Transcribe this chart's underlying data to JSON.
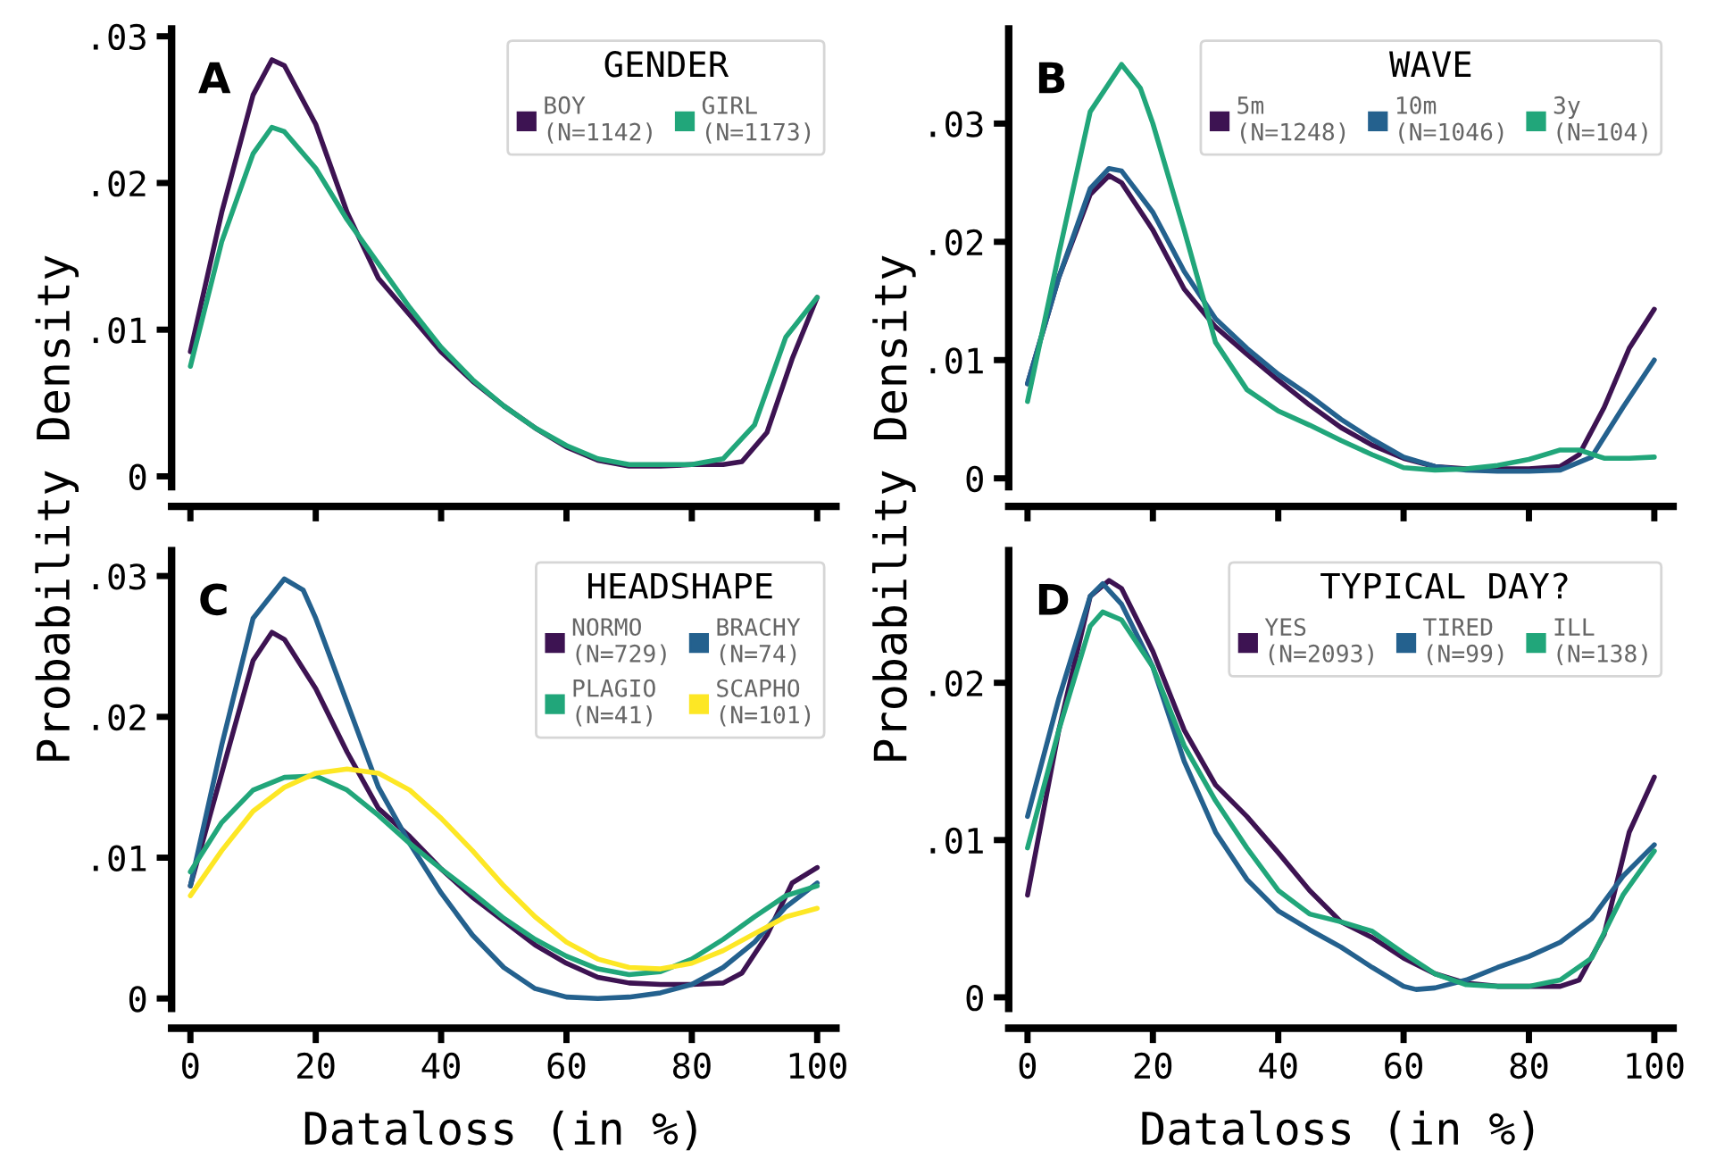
{
  "chart_data": [
    {
      "type": "line",
      "title": "A",
      "ylabel": "Probability Density",
      "legend_title": "GENDER",
      "legend": "top right",
      "grid": false,
      "tick_labels": "y",
      "line_style": "solid",
      "xlim": [
        -3,
        103
      ],
      "xticks": [
        0,
        20,
        40,
        60,
        80,
        100
      ],
      "ylim": [
        -0.0007,
        0.0305
      ],
      "yticks": [
        0,
        {
          "value": 0.01,
          "label": ".01"
        },
        {
          "value": 0.02,
          "label": ".02"
        },
        {
          "value": 0.03,
          "label": ".03"
        }
      ],
      "series": [
        {
          "name": "BOY\n(N=1142)",
          "color": "#3d1352",
          "x": [
            0,
            5,
            10,
            13,
            15,
            20,
            25,
            30,
            35,
            40,
            45,
            50,
            55,
            60,
            65,
            70,
            75,
            80,
            85,
            88,
            92,
            96,
            100
          ],
          "values": [
            0.0085,
            0.018,
            0.026,
            0.0284,
            0.028,
            0.024,
            0.018,
            0.0135,
            0.011,
            0.0085,
            0.0065,
            0.0048,
            0.0033,
            0.002,
            0.0011,
            0.0007,
            0.0007,
            0.0008,
            0.0008,
            0.001,
            0.003,
            0.008,
            0.0122
          ]
        },
        {
          "name": "GIRL\n(N=1173)",
          "color": "#21a67a",
          "x": [
            0,
            5,
            10,
            13,
            15,
            20,
            25,
            30,
            35,
            40,
            45,
            50,
            55,
            60,
            65,
            70,
            75,
            80,
            85,
            90,
            95,
            100
          ],
          "values": [
            0.0075,
            0.016,
            0.022,
            0.0238,
            0.0235,
            0.021,
            0.0175,
            0.0145,
            0.0115,
            0.0088,
            0.0066,
            0.0048,
            0.0033,
            0.0021,
            0.0012,
            0.0008,
            0.0008,
            0.0008,
            0.0012,
            0.0035,
            0.0095,
            0.0122
          ]
        }
      ]
    },
    {
      "type": "line",
      "title": "B",
      "ylabel": "Probability Density",
      "legend_title": "WAVE",
      "legend": "top right",
      "grid": false,
      "tick_labels": "y",
      "line_style": "solid",
      "xlim": [
        -3,
        103
      ],
      "xticks": [
        0,
        20,
        40,
        60,
        80,
        100
      ],
      "ylim": [
        -0.0007,
        0.038
      ],
      "yticks": [
        0,
        {
          "value": 0.01,
          "label": ".01"
        },
        {
          "value": 0.02,
          "label": ".02"
        },
        {
          "value": 0.03,
          "label": ".03"
        }
      ],
      "series": [
        {
          "name": "5m\n(N=1248)",
          "color": "#3d1352",
          "x": [
            0,
            5,
            10,
            13,
            15,
            20,
            25,
            30,
            35,
            40,
            45,
            50,
            55,
            60,
            65,
            70,
            75,
            80,
            85,
            88,
            92,
            96,
            100
          ],
          "values": [
            0.008,
            0.017,
            0.024,
            0.0256,
            0.025,
            0.021,
            0.016,
            0.0128,
            0.0105,
            0.0083,
            0.0062,
            0.0043,
            0.0028,
            0.0017,
            0.001,
            0.0008,
            0.0008,
            0.0008,
            0.001,
            0.002,
            0.006,
            0.011,
            0.0143
          ]
        },
        {
          "name": "10m\n(N=1046)",
          "color": "#24618e",
          "x": [
            0,
            5,
            10,
            13,
            15,
            20,
            25,
            30,
            35,
            40,
            45,
            50,
            55,
            60,
            65,
            70,
            75,
            80,
            85,
            90,
            95,
            100
          ],
          "values": [
            0.008,
            0.017,
            0.0245,
            0.0262,
            0.026,
            0.0225,
            0.0175,
            0.0135,
            0.011,
            0.0088,
            0.007,
            0.005,
            0.0033,
            0.0018,
            0.001,
            0.0007,
            0.0006,
            0.0006,
            0.0007,
            0.0018,
            0.006,
            0.01
          ]
        },
        {
          "name": "3y\n(N=104)",
          "color": "#21a67a",
          "x": [
            0,
            5,
            10,
            15,
            18,
            20,
            25,
            30,
            35,
            40,
            45,
            50,
            55,
            60,
            65,
            70,
            75,
            80,
            85,
            88,
            92,
            96,
            100
          ],
          "values": [
            0.0065,
            0.019,
            0.031,
            0.035,
            0.033,
            0.03,
            0.021,
            0.0115,
            0.0075,
            0.0057,
            0.0045,
            0.0032,
            0.002,
            0.0009,
            0.0007,
            0.0008,
            0.0011,
            0.0016,
            0.0024,
            0.0024,
            0.0017,
            0.0017,
            0.0018
          ]
        }
      ]
    },
    {
      "type": "line",
      "title": "C",
      "xlabel": "Dataloss (in %)",
      "legend_title": "HEADSHAPE",
      "legend": "top right",
      "grid": false,
      "line_style": "solid",
      "xlim": [
        -3,
        103
      ],
      "xticks": [
        0,
        20,
        40,
        60,
        80,
        100
      ],
      "ylim": [
        -0.0007,
        0.0318
      ],
      "yticks": [
        0,
        {
          "value": 0.01,
          "label": ".01"
        },
        {
          "value": 0.02,
          "label": ".02"
        },
        {
          "value": 0.03,
          "label": ".03"
        }
      ],
      "series": [
        {
          "name": "NORMO\n(N=729)",
          "color": "#3d1352",
          "x": [
            0,
            5,
            10,
            13,
            15,
            20,
            25,
            30,
            35,
            40,
            45,
            50,
            55,
            60,
            65,
            70,
            75,
            80,
            85,
            88,
            92,
            96,
            100
          ],
          "values": [
            0.008,
            0.016,
            0.024,
            0.026,
            0.0255,
            0.022,
            0.0175,
            0.0135,
            0.0115,
            0.0092,
            0.0072,
            0.0055,
            0.0038,
            0.0025,
            0.0015,
            0.0011,
            0.001,
            0.001,
            0.0011,
            0.0018,
            0.0045,
            0.0082,
            0.0093
          ]
        },
        {
          "name": "BRACHY\n(N=74)",
          "color": "#24618e",
          "x": [
            0,
            5,
            10,
            15,
            18,
            20,
            25,
            30,
            35,
            40,
            45,
            50,
            55,
            60,
            65,
            70,
            75,
            80,
            85,
            90,
            95,
            100
          ],
          "values": [
            0.008,
            0.018,
            0.027,
            0.0298,
            0.029,
            0.027,
            0.021,
            0.015,
            0.011,
            0.0075,
            0.0045,
            0.0022,
            0.0007,
            0.0001,
            0.0,
            0.0001,
            0.0004,
            0.001,
            0.0022,
            0.004,
            0.0065,
            0.0082
          ]
        },
        {
          "name": "PLAGIO\n(N=41)",
          "color": "#21a67a",
          "x": [
            0,
            5,
            10,
            15,
            20,
            25,
            30,
            35,
            40,
            45,
            50,
            55,
            60,
            65,
            70,
            75,
            80,
            85,
            90,
            95,
            100
          ],
          "values": [
            0.009,
            0.0125,
            0.0148,
            0.0157,
            0.0158,
            0.0148,
            0.013,
            0.011,
            0.0092,
            0.0075,
            0.0057,
            0.0042,
            0.003,
            0.0021,
            0.0017,
            0.0019,
            0.0028,
            0.0042,
            0.0058,
            0.0073,
            0.008
          ]
        },
        {
          "name": "SCAPHO\n(N=101)",
          "color": "#fde725",
          "x": [
            0,
            5,
            10,
            15,
            20,
            25,
            30,
            35,
            40,
            45,
            50,
            55,
            60,
            65,
            70,
            75,
            80,
            85,
            90,
            95,
            100
          ],
          "values": [
            0.0073,
            0.0105,
            0.0133,
            0.015,
            0.016,
            0.0163,
            0.016,
            0.0148,
            0.0128,
            0.0105,
            0.008,
            0.0058,
            0.004,
            0.0028,
            0.0022,
            0.0021,
            0.0025,
            0.0034,
            0.0046,
            0.0058,
            0.0064
          ]
        }
      ]
    },
    {
      "type": "line",
      "title": "D",
      "xlabel": "Dataloss (in %)",
      "legend_title": "TYPICAL DAY?",
      "legend": "top right",
      "grid": false,
      "line_style": "solid",
      "xlim": [
        -3,
        103
      ],
      "xticks": [
        0,
        20,
        40,
        60,
        80,
        100
      ],
      "ylim": [
        -0.0007,
        0.0284
      ],
      "yticks": [
        0,
        {
          "value": 0.01,
          "label": ".01"
        },
        {
          "value": 0.02,
          "label": ".02"
        }
      ],
      "series": [
        {
          "name": "YES\n(N=2093)",
          "color": "#3d1352",
          "x": [
            0,
            5,
            10,
            13,
            15,
            20,
            25,
            30,
            35,
            40,
            45,
            50,
            55,
            60,
            65,
            70,
            75,
            80,
            85,
            88,
            92,
            96,
            100
          ],
          "values": [
            0.0065,
            0.017,
            0.0255,
            0.0265,
            0.026,
            0.022,
            0.017,
            0.0135,
            0.0115,
            0.0092,
            0.0068,
            0.0048,
            0.0038,
            0.0025,
            0.0015,
            0.0009,
            0.0007,
            0.0007,
            0.0007,
            0.0011,
            0.004,
            0.0105,
            0.014
          ]
        },
        {
          "name": "TIRED\n(N=99)",
          "color": "#24618e",
          "x": [
            0,
            5,
            10,
            12,
            15,
            20,
            25,
            30,
            35,
            40,
            45,
            50,
            55,
            60,
            62,
            65,
            70,
            75,
            80,
            85,
            90,
            95,
            100
          ],
          "values": [
            0.0115,
            0.019,
            0.0255,
            0.0263,
            0.025,
            0.021,
            0.015,
            0.0105,
            0.0075,
            0.0055,
            0.0043,
            0.0032,
            0.0019,
            0.0007,
            0.0005,
            0.0006,
            0.0011,
            0.0019,
            0.0026,
            0.0035,
            0.005,
            0.0077,
            0.0097
          ]
        },
        {
          "name": "ILL\n(N=138)",
          "color": "#21a67a",
          "x": [
            0,
            5,
            10,
            12,
            15,
            20,
            25,
            30,
            35,
            40,
            45,
            50,
            55,
            60,
            65,
            70,
            75,
            80,
            85,
            90,
            95,
            100
          ],
          "values": [
            0.0095,
            0.017,
            0.0236,
            0.0245,
            0.024,
            0.021,
            0.016,
            0.0125,
            0.0095,
            0.0068,
            0.0053,
            0.0048,
            0.0042,
            0.0028,
            0.0015,
            0.0008,
            0.0007,
            0.0007,
            0.0011,
            0.0025,
            0.0065,
            0.0093
          ]
        }
      ]
    }
  ]
}
